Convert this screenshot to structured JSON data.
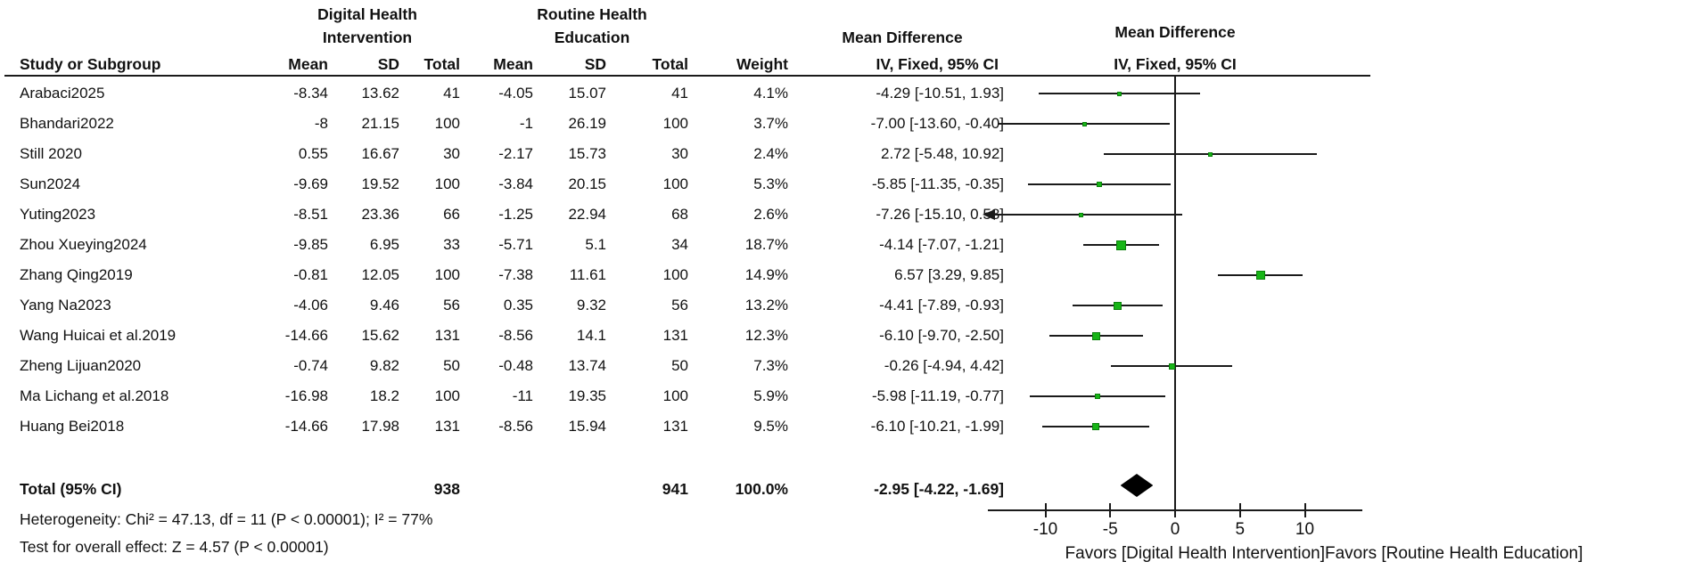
{
  "header": {
    "group1_line1": "Digital Health",
    "group1_line2": "Intervention",
    "group2_line1": "Routine Health",
    "group2_line2": "Education",
    "md_label": "Mean Difference",
    "plot_md_label": "Mean Difference",
    "stat_method": "IV, Fixed, 95% CI",
    "plot_stat_method": "IV, Fixed, 95% CI",
    "col_study": "Study or Subgroup",
    "col_mean1": "Mean",
    "col_sd1": "SD",
    "col_total1": "Total",
    "col_mean2": "Mean",
    "col_sd2": "SD",
    "col_total2": "Total",
    "col_weight": "Weight"
  },
  "chart_data": {
    "type": "forest",
    "effect_measure": "Mean Difference (IV, Fixed, 95% CI)",
    "studies": [
      {
        "name": "Arabaci2025",
        "mean_dhi": "-8.34",
        "sd_dhi": "13.62",
        "total_dhi": "41",
        "mean_rhe": "-4.05",
        "sd_rhe": "15.07",
        "total_rhe": "41",
        "weight": "4.1%",
        "weight_pct": 4.1,
        "md_ci": "-4.29 [-10.51, 1.93]",
        "md": -4.29,
        "ci_low": -10.51,
        "ci_high": 1.93
      },
      {
        "name": "Bhandari2022",
        "mean_dhi": "-8",
        "sd_dhi": "21.15",
        "total_dhi": "100",
        "mean_rhe": "-1",
        "sd_rhe": "26.19",
        "total_rhe": "100",
        "weight": "3.7%",
        "weight_pct": 3.7,
        "md_ci": "-7.00 [-13.60, -0.40]",
        "md": -7.0,
        "ci_low": -13.6,
        "ci_high": -0.4
      },
      {
        "name": "Still 2020",
        "mean_dhi": "0.55",
        "sd_dhi": "16.67",
        "total_dhi": "30",
        "mean_rhe": "-2.17",
        "sd_rhe": "15.73",
        "total_rhe": "30",
        "weight": "2.4%",
        "weight_pct": 2.4,
        "md_ci": "2.72 [-5.48, 10.92]",
        "md": 2.72,
        "ci_low": -5.48,
        "ci_high": 10.92
      },
      {
        "name": "Sun2024",
        "mean_dhi": "-9.69",
        "sd_dhi": "19.52",
        "total_dhi": "100",
        "mean_rhe": "-3.84",
        "sd_rhe": "20.15",
        "total_rhe": "100",
        "weight": "5.3%",
        "weight_pct": 5.3,
        "md_ci": "-5.85 [-11.35, -0.35]",
        "md": -5.85,
        "ci_low": -11.35,
        "ci_high": -0.35
      },
      {
        "name": "Yuting2023",
        "mean_dhi": "-8.51",
        "sd_dhi": "23.36",
        "total_dhi": "66",
        "mean_rhe": "-1.25",
        "sd_rhe": "22.94",
        "total_rhe": "68",
        "weight": "2.6%",
        "weight_pct": 2.6,
        "md_ci": "-7.26 [-15.10, 0.58]",
        "md": -7.26,
        "ci_low": -15.1,
        "ci_high": 0.58
      },
      {
        "name": "Zhou Xueying2024",
        "mean_dhi": "-9.85",
        "sd_dhi": "6.95",
        "total_dhi": "33",
        "mean_rhe": "-5.71",
        "sd_rhe": "5.1",
        "total_rhe": "34",
        "weight": "18.7%",
        "weight_pct": 18.7,
        "md_ci": "-4.14 [-7.07, -1.21]",
        "md": -4.14,
        "ci_low": -7.07,
        "ci_high": -1.21
      },
      {
        "name": "Zhang Qing2019",
        "mean_dhi": "-0.81",
        "sd_dhi": "12.05",
        "total_dhi": "100",
        "mean_rhe": "-7.38",
        "sd_rhe": "11.61",
        "total_rhe": "100",
        "weight": "14.9%",
        "weight_pct": 14.9,
        "md_ci": "6.57 [3.29, 9.85]",
        "md": 6.57,
        "ci_low": 3.29,
        "ci_high": 9.85
      },
      {
        "name": "Yang Na2023",
        "mean_dhi": "-4.06",
        "sd_dhi": "9.46",
        "total_dhi": "56",
        "mean_rhe": "0.35",
        "sd_rhe": "9.32",
        "total_rhe": "56",
        "weight": "13.2%",
        "weight_pct": 13.2,
        "md_ci": "-4.41 [-7.89, -0.93]",
        "md": -4.41,
        "ci_low": -7.89,
        "ci_high": -0.93
      },
      {
        "name": "Wang Huicai et al.2019",
        "mean_dhi": "-14.66",
        "sd_dhi": "15.62",
        "total_dhi": "131",
        "mean_rhe": "-8.56",
        "sd_rhe": "14.1",
        "total_rhe": "131",
        "weight": "12.3%",
        "weight_pct": 12.3,
        "md_ci": "-6.10 [-9.70, -2.50]",
        "md": -6.1,
        "ci_low": -9.7,
        "ci_high": -2.5
      },
      {
        "name": "Zheng Lijuan2020",
        "mean_dhi": "-0.74",
        "sd_dhi": "9.82",
        "total_dhi": "50",
        "mean_rhe": "-0.48",
        "sd_rhe": "13.74",
        "total_rhe": "50",
        "weight": "7.3%",
        "weight_pct": 7.3,
        "md_ci": "-0.26 [-4.94, 4.42]",
        "md": -0.26,
        "ci_low": -4.94,
        "ci_high": 4.42
      },
      {
        "name": "Ma Lichang et al.2018",
        "mean_dhi": "-16.98",
        "sd_dhi": "18.2",
        "total_dhi": "100",
        "mean_rhe": "-11",
        "sd_rhe": "19.35",
        "total_rhe": "100",
        "weight": "5.9%",
        "weight_pct": 5.9,
        "md_ci": "-5.98 [-11.19, -0.77]",
        "md": -5.98,
        "ci_low": -11.19,
        "ci_high": -0.77
      },
      {
        "name": "Huang Bei2018",
        "mean_dhi": "-14.66",
        "sd_dhi": "17.98",
        "total_dhi": "131",
        "mean_rhe": "-8.56",
        "sd_rhe": "15.94",
        "total_rhe": "131",
        "weight": "9.5%",
        "weight_pct": 9.5,
        "md_ci": "-6.10 [-10.21, -1.99]",
        "md": -6.1,
        "ci_low": -10.21,
        "ci_high": -1.99
      }
    ],
    "total": {
      "label": "Total (95% CI)",
      "total_dhi": "938",
      "total_rhe": "941",
      "weight": "100.0%",
      "md_ci": "-2.95 [-4.22, -1.69]",
      "md": -2.95,
      "ci_low": -4.22,
      "ci_high": -1.69
    },
    "footnotes": {
      "heterogeneity": "Heterogeneity: Chi² = 47.13, df = 11 (P < 0.00001); I² = 77%",
      "overall_effect": "Test for overall effect: Z = 4.57 (P < 0.00001)"
    },
    "axis": {
      "ticks": [
        {
          "value": -10,
          "label": "-10"
        },
        {
          "value": -5,
          "label": "-5"
        },
        {
          "value": 0,
          "label": "0"
        },
        {
          "value": 5,
          "label": "5"
        },
        {
          "value": 10,
          "label": "10"
        }
      ],
      "min": -14.4,
      "max": 14.4
    },
    "favors_left": "Favors [Digital Health Intervention]",
    "favors_right": "Favors [Routine Health Education]",
    "colors": {
      "square_fill": "#17b517",
      "square_border": "#0b800b",
      "line": "#1a1a1a",
      "diamond": "#000000"
    }
  }
}
